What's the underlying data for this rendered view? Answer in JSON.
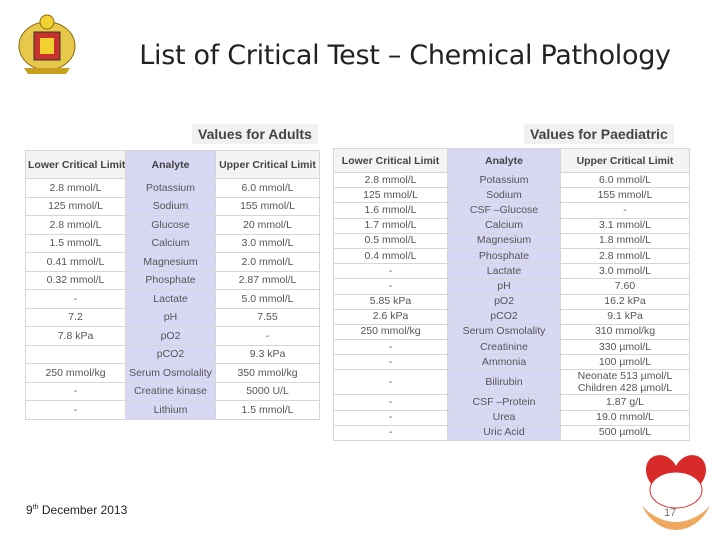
{
  "header": {
    "title": "List of Critical Test – Chemical Pathology"
  },
  "adults": {
    "caption": "Values for Adults",
    "columns": [
      "Lower Critical Limit",
      "Analyte",
      "Upper Critical Limit"
    ],
    "rows": [
      [
        "2.8 mmol/L",
        "Potassium",
        "6.0 mmol/L"
      ],
      [
        "125 mmol/L",
        "Sodium",
        "155 mmol/L"
      ],
      [
        "2.8 mmol/L",
        "Glucose",
        "20 mmol/L"
      ],
      [
        "1.5 mmol/L",
        "Calcium",
        "3.0 mmol/L"
      ],
      [
        "0.41 mmol/L",
        "Magnesium",
        "2.0 mmol/L"
      ],
      [
        "0.32 mmol/L",
        "Phosphate",
        "2.87 mmol/L"
      ],
      [
        "-",
        "Lactate",
        "5.0 mmol/L"
      ],
      [
        "7.2",
        "pH",
        "7.55"
      ],
      [
        "7.8 kPa",
        "pO2",
        "-"
      ],
      [
        null,
        "pCO2",
        "9.3 kPa"
      ],
      [
        "250 mmol/kg",
        "Serum Osmolality",
        "350 mmol/kg"
      ],
      [
        "-",
        "Creatine kinase",
        "5000 U/L"
      ],
      [
        "-",
        "Lithium",
        "1.5 mmol/L"
      ]
    ]
  },
  "paediatric": {
    "caption": "Values for Paediatric",
    "columns": [
      "Lower Critical Limit",
      "Analyte",
      "Upper Critical Limit"
    ],
    "rows": [
      [
        "2.8 mmol/L",
        "Potassium",
        "6.0 mmol/L"
      ],
      [
        "125 mmol/L",
        "Sodium",
        "155 mmol/L"
      ],
      [
        "1.6 mmol/L",
        "CSF –Glucose",
        "-"
      ],
      [
        "1.7 mmol/L",
        "Calcium",
        "3.1 mmol/L"
      ],
      [
        "0.5 mmol/L",
        "Magnesium",
        "1.8 mmol/L"
      ],
      [
        "0.4 mmol/L",
        "Phosphate",
        "2.8 mmol/L"
      ],
      [
        "-",
        "Lactate",
        "3.0 mmol/L"
      ],
      [
        "-",
        "pH",
        "7.60"
      ],
      [
        "5.85 kPa",
        "pO2",
        "16.2 kPa"
      ],
      [
        "2.6 kPa",
        "pCO2",
        "9.1 kPa"
      ],
      [
        "250 mmol/kg",
        "Serum Osmolality",
        "310 mmol/kg"
      ],
      [
        "-",
        "Creatinine",
        "330 µmol/L"
      ],
      [
        "-",
        "Ammonia",
        "100 µmol/L"
      ],
      [
        "-",
        "Bilirubin",
        "Neonate 513 µmol/L Children 428 µmol/L"
      ],
      [
        "-",
        "CSF –Protein",
        "1.87 g/L"
      ],
      [
        "-",
        "Urea",
        "19.0 mmol/L"
      ],
      [
        "-",
        "Uric Acid",
        "500 µmol/L"
      ]
    ]
  },
  "footer": {
    "date_day": "9",
    "date_suffix": "th",
    "date_rest": " December 2013",
    "page": "17"
  }
}
